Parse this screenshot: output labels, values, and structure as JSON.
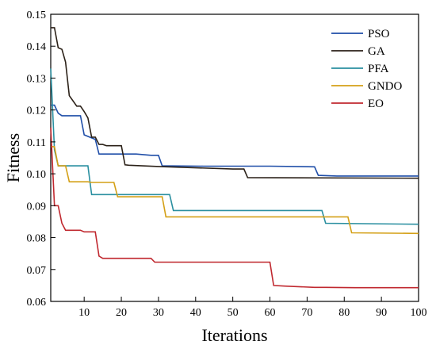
{
  "chart_data": {
    "type": "line",
    "xlabel": "Iterations",
    "ylabel": "Fitness",
    "xlim": [
      1,
      100
    ],
    "ylim": [
      0.06,
      0.15
    ],
    "xticks": [
      10,
      20,
      30,
      40,
      50,
      60,
      70,
      80,
      90,
      100
    ],
    "yticks": [
      0.06,
      0.07,
      0.08,
      0.09,
      0.1,
      0.11,
      0.12,
      0.13,
      0.14,
      0.15
    ],
    "ytick_labels": [
      "0.06",
      "0.07",
      "0.08",
      "0.09",
      "0.10",
      "0.11",
      "0.12",
      "0.13",
      "0.14",
      "0.15"
    ],
    "legend_position": "top-right",
    "grid": false,
    "series": [
      {
        "name": "PSO",
        "color": "#1f4ea8",
        "x": [
          1,
          2,
          3,
          4,
          9,
          10,
          13,
          14,
          24,
          28,
          30,
          31,
          42,
          60,
          72,
          73,
          78,
          100
        ],
        "y": [
          0.1215,
          0.1215,
          0.119,
          0.1182,
          0.1182,
          0.1122,
          0.1108,
          0.1062,
          0.1062,
          0.1058,
          0.1058,
          0.1025,
          0.1024,
          0.1024,
          0.1022,
          0.0995,
          0.0993,
          0.0993
        ]
      },
      {
        "name": "GA",
        "color": "#2b2118",
        "x": [
          1,
          2,
          3,
          4,
          5,
          6,
          8,
          9,
          10,
          11,
          12,
          13,
          14,
          15,
          16,
          20,
          21,
          22,
          30,
          50,
          53,
          54,
          100
        ],
        "y": [
          0.1458,
          0.1458,
          0.1395,
          0.139,
          0.135,
          0.1245,
          0.1212,
          0.1212,
          0.1195,
          0.1175,
          0.1115,
          0.1115,
          0.1092,
          0.1092,
          0.1088,
          0.1088,
          0.1028,
          0.1027,
          0.1023,
          0.1015,
          0.1015,
          0.0988,
          0.0986
        ]
      },
      {
        "name": "PFA",
        "color": "#2a8fa0",
        "x": [
          1,
          2,
          3,
          4,
          11,
          12,
          30,
          33,
          34,
          74,
          75,
          100
        ],
        "y": [
          0.133,
          0.1075,
          0.1025,
          0.1025,
          0.1025,
          0.0935,
          0.0935,
          0.0935,
          0.0885,
          0.0885,
          0.0845,
          0.0842
        ]
      },
      {
        "name": "GNDO",
        "color": "#d4a017",
        "x": [
          1,
          2,
          3,
          5,
          6,
          11,
          12,
          18,
          19,
          31,
          32,
          43,
          81,
          82,
          100
        ],
        "y": [
          0.1085,
          0.1085,
          0.1025,
          0.1025,
          0.0975,
          0.0975,
          0.0973,
          0.0973,
          0.0928,
          0.0928,
          0.0865,
          0.0865,
          0.0865,
          0.0815,
          0.0813
        ]
      },
      {
        "name": "EO",
        "color": "#c0282f",
        "x": [
          1,
          2,
          3,
          4,
          5,
          9,
          10,
          13,
          14,
          15,
          28,
          29,
          60,
          61,
          64,
          72,
          75,
          83,
          100
        ],
        "y": [
          0.1145,
          0.09,
          0.09,
          0.0845,
          0.0823,
          0.0823,
          0.0818,
          0.0818,
          0.0742,
          0.0735,
          0.0735,
          0.0723,
          0.0723,
          0.065,
          0.0648,
          0.0644,
          0.0644,
          0.0643,
          0.0643
        ]
      }
    ]
  }
}
